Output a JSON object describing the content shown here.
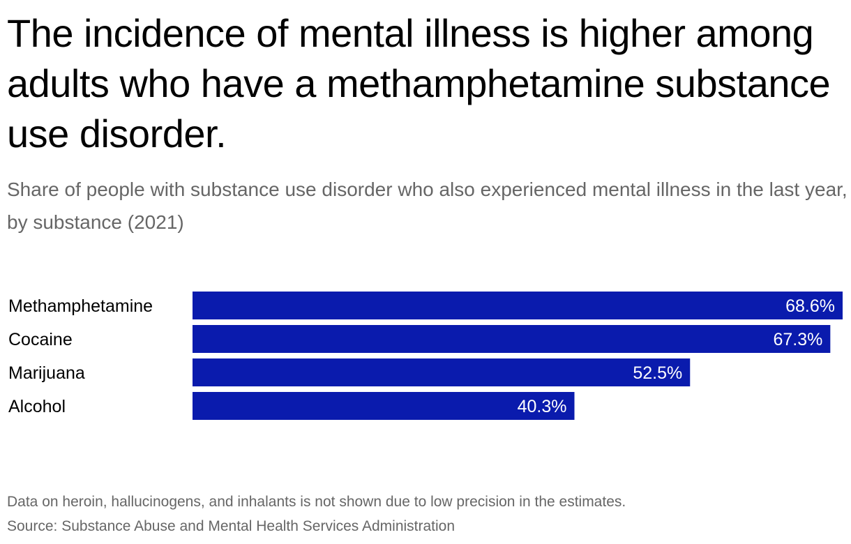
{
  "title": "The incidence of mental illness is higher among adults who have a methamphetamine substance use disorder.",
  "subtitle": "Share of people with substance use disorder who also experienced mental illness in the last year, by substance (2021)",
  "note": "Data on heroin, hallucinogens, and inhalants is not shown due to low precision in the estimates.",
  "source": "Source: Substance Abuse and Mental Health Services Administration",
  "colors": {
    "bar": "#0a1bad",
    "value_text": "#ffffff"
  },
  "chart_data": {
    "type": "bar",
    "orientation": "horizontal",
    "categories": [
      "Methamphetamine",
      "Cocaine",
      "Marijuana",
      "Alcohol"
    ],
    "values": [
      68.6,
      67.3,
      52.5,
      40.3
    ],
    "value_labels": [
      "68.6%",
      "67.3%",
      "52.5%",
      "40.3%"
    ],
    "title": "The incidence of mental illness is higher among adults who have a methamphetamine substance use disorder.",
    "subtitle": "Share of people with substance use disorder who also experienced mental illness in the last year, by substance (2021)",
    "xlabel": "",
    "ylabel": "",
    "xlim": [
      0,
      68.6
    ],
    "grid": false,
    "legend": "none"
  }
}
